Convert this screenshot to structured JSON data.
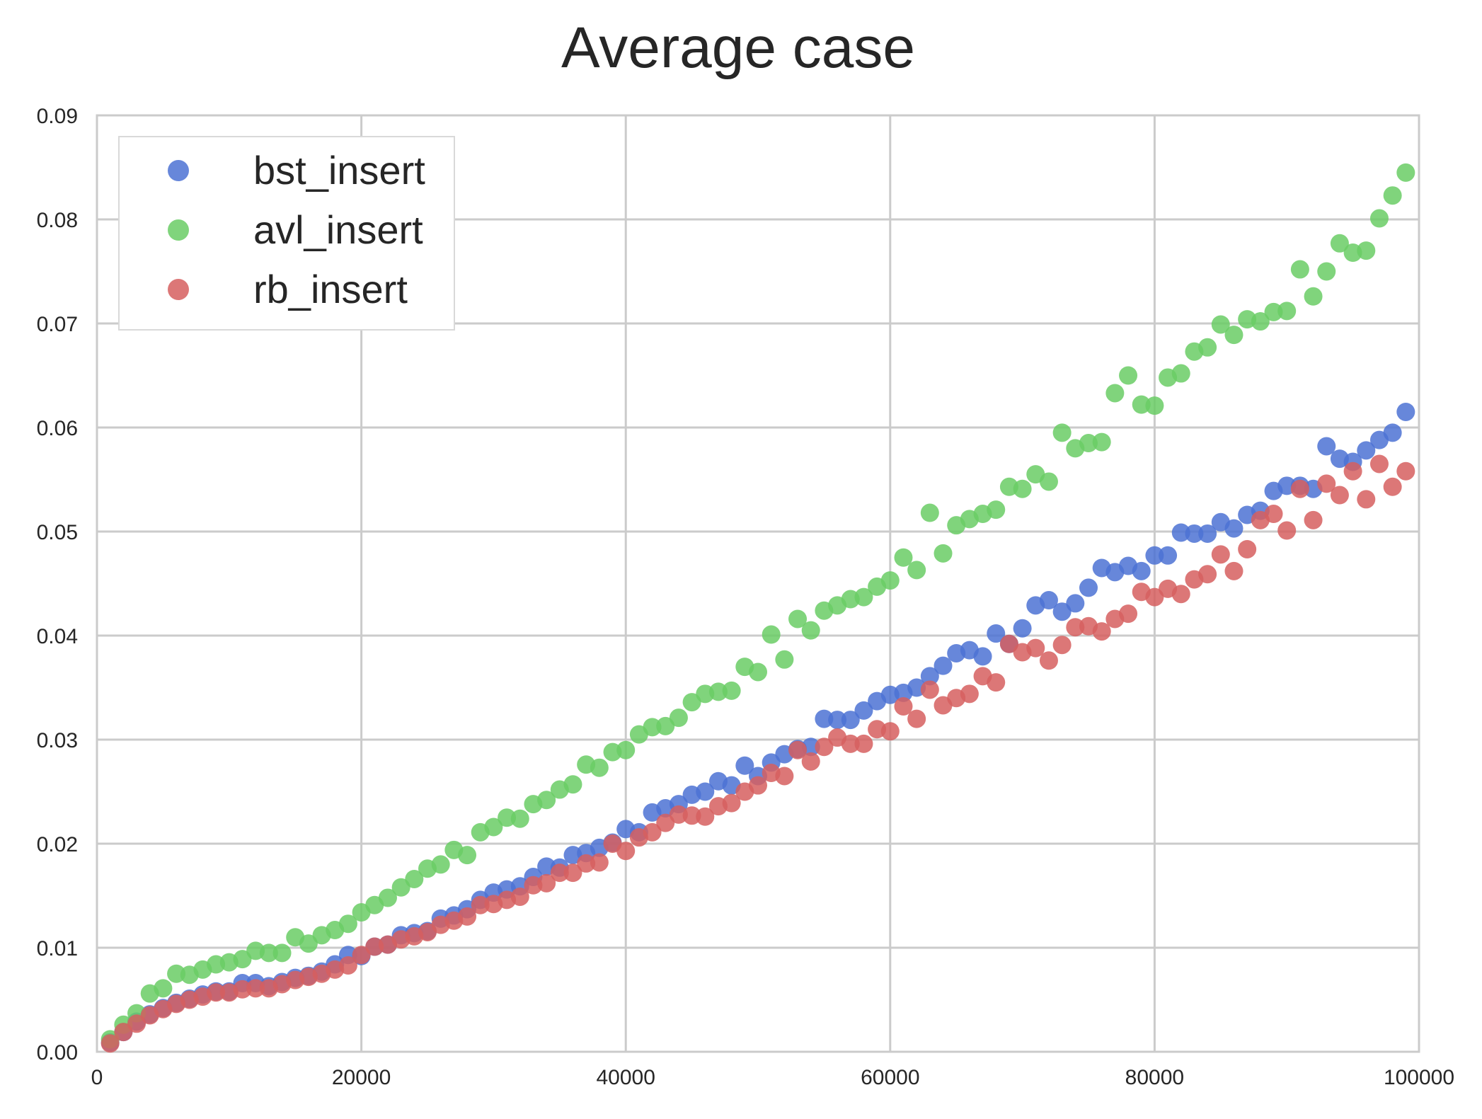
{
  "chart_data": {
    "type": "scatter",
    "title": "Average case",
    "xlabel": "",
    "ylabel": "",
    "xlim": [
      0,
      100000
    ],
    "ylim": [
      0,
      0.09
    ],
    "xticks": [
      0,
      20000,
      40000,
      60000,
      80000,
      100000
    ],
    "yticks": [
      0.0,
      0.01,
      0.02,
      0.03,
      0.04,
      0.05,
      0.06,
      0.07,
      0.08,
      0.09
    ],
    "xtick_labels": [
      "0",
      "20000",
      "40000",
      "60000",
      "80000",
      "100000"
    ],
    "ytick_labels": [
      "0.00",
      "0.01",
      "0.02",
      "0.03",
      "0.04",
      "0.05",
      "0.06",
      "0.07",
      "0.08",
      "0.09"
    ],
    "grid": true,
    "legend_position": "top-left",
    "x": [
      1000,
      2000,
      3000,
      4000,
      5000,
      6000,
      7000,
      8000,
      9000,
      10000,
      11000,
      12000,
      13000,
      14000,
      15000,
      16000,
      17000,
      18000,
      19000,
      20000,
      21000,
      22000,
      23000,
      24000,
      25000,
      26000,
      27000,
      28000,
      29000,
      30000,
      31000,
      32000,
      33000,
      34000,
      35000,
      36000,
      37000,
      38000,
      39000,
      40000,
      41000,
      42000,
      43000,
      44000,
      45000,
      46000,
      47000,
      48000,
      49000,
      50000,
      51000,
      52000,
      53000,
      54000,
      55000,
      56000,
      57000,
      58000,
      59000,
      60000,
      61000,
      62000,
      63000,
      64000,
      65000,
      66000,
      67000,
      68000,
      69000,
      70000,
      71000,
      72000,
      73000,
      74000,
      75000,
      76000,
      77000,
      78000,
      79000,
      80000,
      81000,
      82000,
      83000,
      84000,
      85000,
      86000,
      87000,
      88000,
      89000,
      90000,
      91000,
      92000,
      93000,
      94000,
      95000,
      96000,
      97000,
      98000,
      99000
    ],
    "series": [
      {
        "name": "bst_insert",
        "color": "#4c72d3",
        "values": [
          0.0009,
          0.0019,
          0.0029,
          0.0036,
          0.0042,
          0.0047,
          0.0051,
          0.0055,
          0.0058,
          0.0058,
          0.0066,
          0.0066,
          0.0063,
          0.0067,
          0.0071,
          0.0073,
          0.0077,
          0.0084,
          0.0093,
          0.0092,
          0.0101,
          0.0103,
          0.0112,
          0.0114,
          0.0116,
          0.0128,
          0.0131,
          0.0137,
          0.0146,
          0.0153,
          0.0156,
          0.0159,
          0.0168,
          0.0178,
          0.0177,
          0.0189,
          0.0191,
          0.0196,
          0.0201,
          0.0214,
          0.0211,
          0.023,
          0.0234,
          0.0238,
          0.0247,
          0.025,
          0.026,
          0.0256,
          0.0275,
          0.0265,
          0.0278,
          0.0286,
          0.0291,
          0.0293,
          0.032,
          0.0319,
          0.0319,
          0.0328,
          0.0337,
          0.0343,
          0.0345,
          0.035,
          0.0361,
          0.0371,
          0.0383,
          0.0386,
          0.038,
          0.0402,
          0.0392,
          0.0407,
          0.0429,
          0.0434,
          0.0423,
          0.0431,
          0.0446,
          0.0465,
          0.0461,
          0.0467,
          0.0462,
          0.0477,
          0.0477,
          0.0499,
          0.0498,
          0.0498,
          0.0509,
          0.0503,
          0.0516,
          0.052,
          0.0539,
          0.0544,
          0.0544,
          0.0541,
          0.0582,
          0.057,
          0.0567,
          0.0578,
          0.0588,
          0.0595,
          0.0615
        ]
      },
      {
        "name": "avl_insert",
        "color": "#6acc65",
        "values": [
          0.0012,
          0.0026,
          0.0037,
          0.0056,
          0.0061,
          0.0075,
          0.0074,
          0.0079,
          0.0084,
          0.0086,
          0.0089,
          0.0097,
          0.0095,
          0.0095,
          0.011,
          0.0104,
          0.0112,
          0.0117,
          0.0123,
          0.0134,
          0.0141,
          0.0148,
          0.0158,
          0.0166,
          0.0176,
          0.018,
          0.0194,
          0.0189,
          0.0211,
          0.0216,
          0.0225,
          0.0224,
          0.0238,
          0.0242,
          0.0252,
          0.0257,
          0.0276,
          0.0273,
          0.0288,
          0.029,
          0.0305,
          0.0312,
          0.0313,
          0.0321,
          0.0336,
          0.0344,
          0.0346,
          0.0347,
          0.037,
          0.0365,
          0.0401,
          0.0377,
          0.0416,
          0.0405,
          0.0424,
          0.0429,
          0.0435,
          0.0437,
          0.0447,
          0.0453,
          0.0475,
          0.0463,
          0.0518,
          0.0479,
          0.0506,
          0.0512,
          0.0517,
          0.0521,
          0.0543,
          0.0541,
          0.0555,
          0.0548,
          0.0595,
          0.058,
          0.0585,
          0.0586,
          0.0633,
          0.065,
          0.0622,
          0.0621,
          0.0648,
          0.0652,
          0.0673,
          0.0677,
          0.0699,
          0.0689,
          0.0704,
          0.0702,
          0.0711,
          0.0712,
          0.0752,
          0.0726,
          0.075,
          0.0777,
          0.0768,
          0.077,
          0.0801,
          0.0823,
          0.0845
        ]
      },
      {
        "name": "rb_insert",
        "color": "#d65f5f",
        "values": [
          0.0008,
          0.0019,
          0.0027,
          0.0035,
          0.0041,
          0.0046,
          0.005,
          0.0053,
          0.0057,
          0.0057,
          0.006,
          0.0061,
          0.0061,
          0.0065,
          0.0069,
          0.0072,
          0.0075,
          0.0079,
          0.0083,
          0.0093,
          0.0101,
          0.0103,
          0.0108,
          0.0111,
          0.0115,
          0.0122,
          0.0126,
          0.013,
          0.0141,
          0.0142,
          0.0146,
          0.0149,
          0.016,
          0.0162,
          0.0172,
          0.0172,
          0.0181,
          0.0182,
          0.02,
          0.0193,
          0.0206,
          0.0211,
          0.022,
          0.0228,
          0.0227,
          0.0226,
          0.0236,
          0.0239,
          0.025,
          0.0256,
          0.0268,
          0.0265,
          0.029,
          0.0279,
          0.0293,
          0.0302,
          0.0296,
          0.0296,
          0.031,
          0.0308,
          0.0332,
          0.032,
          0.0348,
          0.0333,
          0.034,
          0.0344,
          0.0361,
          0.0355,
          0.0392,
          0.0384,
          0.0388,
          0.0376,
          0.0391,
          0.0408,
          0.0409,
          0.0404,
          0.0416,
          0.0421,
          0.0442,
          0.0437,
          0.0445,
          0.044,
          0.0454,
          0.0459,
          0.0478,
          0.0462,
          0.0483,
          0.0511,
          0.0517,
          0.0501,
          0.0541,
          0.0511,
          0.0546,
          0.0535,
          0.0558,
          0.0531,
          0.0565,
          0.0543,
          0.0558
        ]
      }
    ]
  }
}
